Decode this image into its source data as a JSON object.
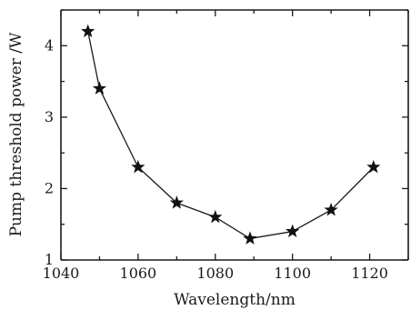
{
  "chart_data": {
    "type": "line",
    "xlabel": "Wavelength/nm",
    "ylabel": "Pump threshold power /W",
    "xlim": [
      1040,
      1130
    ],
    "ylim": [
      1,
      4.5
    ],
    "x_ticks": [
      1040,
      1060,
      1080,
      1100,
      1120
    ],
    "y_ticks": [
      1,
      2,
      3,
      4
    ],
    "grid": false,
    "marker": "star",
    "series": [
      {
        "x": [
          1047,
          1050,
          1060,
          1070,
          1080,
          1089,
          1100,
          1110,
          1121
        ],
        "values": [
          4.2,
          3.4,
          2.3,
          1.8,
          1.6,
          1.3,
          1.4,
          1.7,
          2.3
        ]
      }
    ],
    "colors": {
      "line": "#1a1a1a",
      "marker": "#111111"
    }
  }
}
